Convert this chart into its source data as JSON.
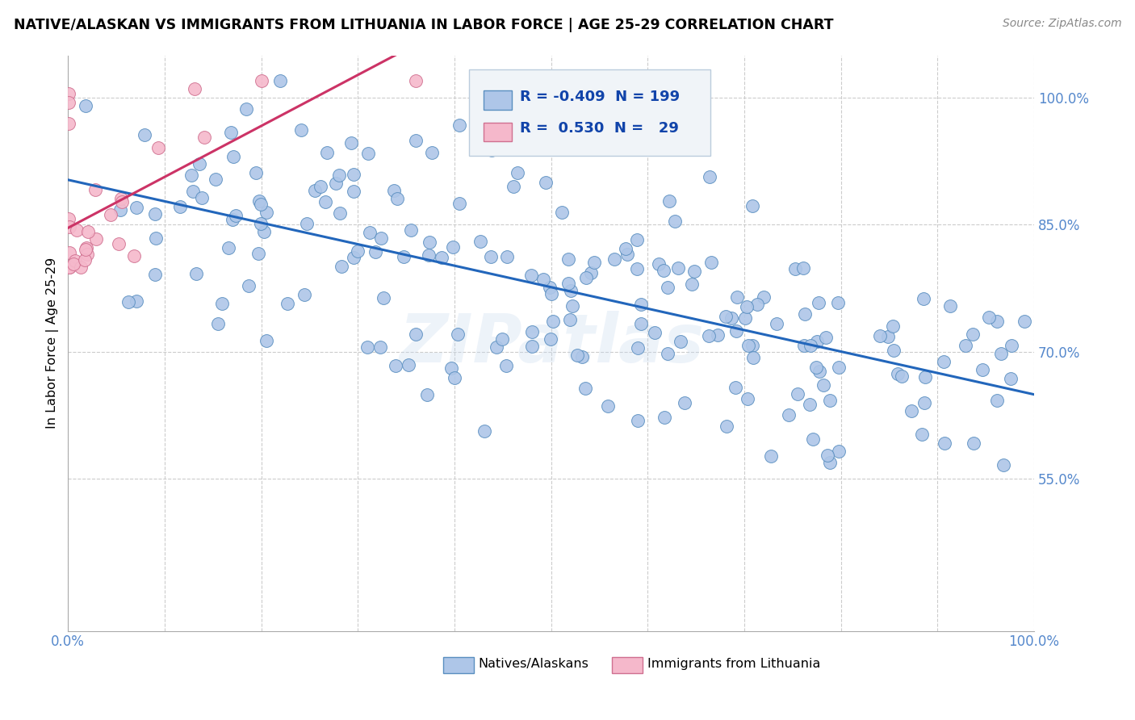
{
  "title": "NATIVE/ALASKAN VS IMMIGRANTS FROM LITHUANIA IN LABOR FORCE | AGE 25-29 CORRELATION CHART",
  "source": "Source: ZipAtlas.com",
  "ylabel": "In Labor Force | Age 25-29",
  "y_tick_labels": [
    "55.0%",
    "70.0%",
    "85.0%",
    "100.0%"
  ],
  "y_tick_values": [
    0.55,
    0.7,
    0.85,
    1.0
  ],
  "xlim": [
    0.0,
    1.0
  ],
  "ylim": [
    0.37,
    1.05
  ],
  "legend_r_blue": "-0.409",
  "legend_n_blue": "199",
  "legend_r_pink": "0.530",
  "legend_n_pink": "29",
  "blue_color": "#aec6e8",
  "blue_edge": "#5a8fc0",
  "pink_color": "#f5b8cb",
  "pink_edge": "#d07090",
  "trendline_blue": "#2266bb",
  "trendline_pink": "#cc3366",
  "watermark": "ZIPatlas",
  "legend_box_color": "#e8f0f8",
  "legend_box_edge": "#aabbcc"
}
